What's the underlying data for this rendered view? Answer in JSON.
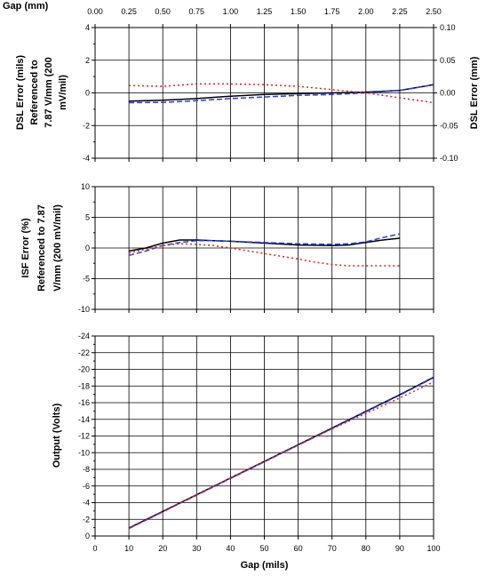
{
  "chart_data": [
    {
      "type": "line",
      "xlabel": "Gap (mils)",
      "x_top_label": "Gap (mm)",
      "ylabel_lines": [
        "DSL Error (mils)",
        "Referenced to",
        "7.87 V/mm (200",
        "mV/mil)"
      ],
      "y2label": "DSL Error (mm)",
      "xlim": [
        0,
        100
      ],
      "ylim": [
        -4,
        4
      ],
      "y2lim": [
        -0.1,
        0.1
      ],
      "x_ticks": [
        0,
        10,
        20,
        30,
        40,
        50,
        60,
        70,
        80,
        90,
        100
      ],
      "y_ticks": [
        4,
        2,
        0,
        -2,
        -4
      ],
      "y_tick_labels": [
        "4",
        "2",
        "0",
        "-2",
        "-4"
      ],
      "y2_ticks": [
        0.1,
        0.05,
        0,
        -0.05,
        -0.1
      ],
      "y2_tick_labels": [
        "0.10",
        "0.05",
        "0.00",
        "-0.05",
        "-0.10"
      ],
      "top_ticks": [
        0,
        0.25,
        0.5,
        0.75,
        1.0,
        1.25,
        1.5,
        1.75,
        2.0,
        2.25,
        2.5
      ],
      "top_tick_labels": [
        "0.00",
        "0.25",
        "0.50",
        "0.75",
        "1.00",
        "1.25",
        "1.50",
        "1.75",
        "2.00",
        "2.25",
        "2.50"
      ],
      "grid": true,
      "series": [
        {
          "color": "#000000",
          "dash": "solid",
          "x": [
            10,
            20,
            30,
            40,
            50,
            60,
            70,
            80,
            90,
            100
          ],
          "y": [
            -0.5,
            -0.45,
            -0.35,
            -0.2,
            -0.1,
            -0.05,
            0,
            0.05,
            0.15,
            0.5
          ]
        },
        {
          "color": "#2a3fd6",
          "dash": "dash",
          "x": [
            10,
            20,
            30,
            40,
            50,
            60,
            70,
            80,
            90,
            100
          ],
          "y": [
            -0.6,
            -0.58,
            -0.48,
            -0.35,
            -0.25,
            -0.15,
            -0.1,
            0,
            0.15,
            0.5
          ]
        },
        {
          "color": "#e02020",
          "dash": "dot",
          "x": [
            10,
            20,
            30,
            40,
            50,
            60,
            70,
            80,
            90,
            100
          ],
          "y": [
            0.45,
            0.4,
            0.55,
            0.55,
            0.5,
            0.4,
            0.2,
            0,
            -0.3,
            -0.6
          ]
        }
      ]
    },
    {
      "type": "line",
      "ylabel_lines": [
        "ISF Error (%)",
        "Referenced to 7.87",
        "V/mm (200 mV/mil)"
      ],
      "xlim": [
        0,
        100
      ],
      "ylim": [
        -10,
        10
      ],
      "x_ticks": [
        0,
        10,
        20,
        30,
        40,
        50,
        60,
        70,
        80,
        90,
        100
      ],
      "y_ticks": [
        10,
        5,
        0,
        -5,
        -10
      ],
      "y_tick_labels": [
        "10",
        "5",
        "0",
        "-5",
        "-10"
      ],
      "grid": true,
      "series": [
        {
          "color": "#000000",
          "dash": "solid",
          "x": [
            10,
            15,
            20,
            25,
            30,
            35,
            40,
            50,
            60,
            70,
            75,
            80,
            85,
            90
          ],
          "y": [
            -0.5,
            0,
            0.8,
            1.3,
            1.3,
            1.2,
            1.1,
            0.8,
            0.5,
            0.4,
            0.5,
            0.9,
            1.3,
            1.6
          ]
        },
        {
          "color": "#2a3fd6",
          "dash": "dash",
          "x": [
            10,
            15,
            20,
            25,
            30,
            35,
            40,
            50,
            60,
            70,
            75,
            80,
            85,
            90
          ],
          "y": [
            -1.2,
            -0.5,
            0.4,
            0.9,
            1.2,
            1.2,
            1.1,
            0.9,
            0.7,
            0.6,
            0.7,
            1.0,
            1.7,
            2.3
          ]
        },
        {
          "color": "#e02020",
          "dash": "dot",
          "x": [
            10,
            15,
            20,
            25,
            30,
            35,
            40,
            50,
            60,
            65,
            70,
            75,
            80,
            85,
            90
          ],
          "y": [
            -0.8,
            -0.2,
            0.4,
            0.7,
            0.6,
            0.4,
            0,
            -0.9,
            -1.8,
            -2.3,
            -2.7,
            -2.9,
            -2.9,
            -2.9,
            -2.9
          ]
        }
      ]
    },
    {
      "type": "line",
      "xlabel": "Gap (mils)",
      "ylabel_lines": [
        "Output (Volts)"
      ],
      "xlim": [
        0,
        100
      ],
      "ylim": [
        0,
        -24
      ],
      "x_ticks": [
        0,
        10,
        20,
        30,
        40,
        50,
        60,
        70,
        80,
        90,
        100
      ],
      "x_tick_labels": [
        "0",
        "10",
        "20",
        "30",
        "40",
        "50",
        "60",
        "70",
        "80",
        "90",
        "100"
      ],
      "y_ticks": [
        -24,
        -22,
        -20,
        -18,
        -16,
        -14,
        -12,
        -10,
        -8,
        -6,
        -4,
        -2,
        0
      ],
      "y_tick_labels": [
        "-24",
        "-22",
        "-20",
        "-18",
        "-16",
        "-14",
        "-12",
        "-10",
        "-8",
        "-6",
        "-4",
        "-2",
        "0"
      ],
      "grid": true,
      "series": [
        {
          "color": "#000000",
          "dash": "solid",
          "x": [
            10,
            20,
            30,
            40,
            50,
            60,
            70,
            80,
            90,
            100
          ],
          "y": [
            -0.95,
            -2.95,
            -4.95,
            -6.95,
            -8.95,
            -10.95,
            -12.95,
            -14.95,
            -16.95,
            -19.05
          ]
        },
        {
          "color": "#2a3fd6",
          "dash": "dash",
          "x": [
            10,
            20,
            30,
            40,
            50,
            60,
            70,
            80,
            90,
            100
          ],
          "y": [
            -0.9,
            -2.9,
            -4.9,
            -6.9,
            -8.9,
            -10.9,
            -12.9,
            -14.9,
            -16.9,
            -19.0
          ]
        },
        {
          "color": "#e02020",
          "dash": "dot",
          "x": [
            10,
            20,
            30,
            40,
            50,
            60,
            70,
            80,
            90,
            100
          ],
          "y": [
            -0.9,
            -2.9,
            -4.95,
            -6.95,
            -8.95,
            -10.9,
            -12.85,
            -14.7,
            -16.55,
            -18.5
          ]
        }
      ]
    }
  ]
}
